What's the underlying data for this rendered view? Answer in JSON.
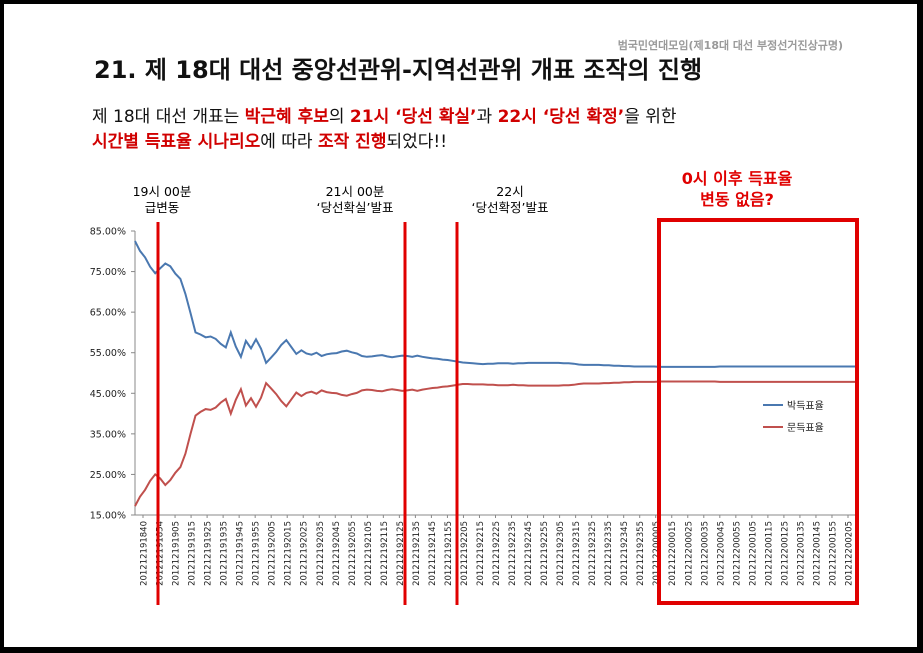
{
  "organization": "범국민연대모임(제18대 대선 부정선거진상규명)",
  "title": "21. 제 18대 대선 중앙선관위-지역선관위 개표 조작의 진행",
  "description": {
    "line1": [
      {
        "text": "제 18대 대선 개표는 ",
        "hl": false
      },
      {
        "text": "박근혜 후보",
        "hl": true
      },
      {
        "text": "의 ",
        "hl": false
      },
      {
        "text": "21시 ‘당선 확실’",
        "hl": true
      },
      {
        "text": "과 ",
        "hl": false
      },
      {
        "text": "22시 ‘당선 확정’",
        "hl": true
      },
      {
        "text": "을 위한",
        "hl": false
      }
    ],
    "line2": [
      {
        "text": "시간별 득표율 시나리오",
        "hl": true
      },
      {
        "text": "에 따라 ",
        "hl": false
      },
      {
        "text": "조작 진행",
        "hl": true
      },
      {
        "text": "되었다!!",
        "hl": false
      }
    ]
  },
  "annotations": {
    "a1_line1": "19시 00분",
    "a1_line2": "급변동",
    "a2_line1": "21시 00분",
    "a2_line2": "‘당선확실’발표",
    "a3_line1": "22시",
    "a3_line2": "‘당선확정’발표",
    "a4_line1": "0시 이후 득표율",
    "a4_line2": "변동 없음?"
  },
  "colors": {
    "park": "#4a78b0",
    "moon": "#c0504d",
    "highlight": "#e00000"
  },
  "chart_data": {
    "type": "line",
    "ylim": [
      15,
      85
    ],
    "yticks": [
      "15.00%",
      "25.00%",
      "35.00%",
      "45.00%",
      "55.00%",
      "65.00%",
      "75.00%",
      "85.00%"
    ],
    "ytick_values": [
      15,
      25,
      35,
      45,
      55,
      65,
      75,
      85
    ],
    "x_tick_labels": [
      "201212191840",
      "201212191854",
      "201212191905",
      "201212191915",
      "201212191925",
      "201212191935",
      "201212191945",
      "201212191955",
      "201212192005",
      "201212192015",
      "201212192025",
      "201212192035",
      "201212192045",
      "201212192055",
      "201212192105",
      "201212192115",
      "201212192125",
      "201212192135",
      "201212192145",
      "201212192155",
      "201212192205",
      "201212192215",
      "201212192225",
      "201212192235",
      "201212192245",
      "201212192255",
      "201212192305",
      "201212192315",
      "201212192325",
      "201212192335",
      "201212192345",
      "201212192355",
      "201212200005",
      "201212200015",
      "201212200025",
      "201212200035",
      "201212200045",
      "201212200055",
      "201212200105",
      "201212200115",
      "201212200125",
      "201212200135",
      "201212200145",
      "201212200155",
      "201212200205"
    ],
    "series": [
      {
        "name": "박득표율",
        "color": "#4a78b0",
        "values": [
          82.5,
          80.1,
          78.5,
          76.2,
          74.6,
          75.8,
          77.0,
          76.3,
          74.5,
          73.2,
          69.5,
          64.8,
          60.0,
          59.5,
          58.8,
          59.0,
          58.4,
          57.2,
          56.3,
          60.0,
          56.5,
          54.0,
          57.9,
          56.1,
          58.3,
          56.0,
          52.5,
          53.8,
          55.2,
          56.9,
          58.1,
          56.4,
          54.7,
          55.6,
          54.8,
          54.5,
          55.0,
          54.2,
          54.6,
          54.8,
          54.9,
          55.3,
          55.5,
          55.1,
          54.8,
          54.2,
          54.0,
          54.1,
          54.3,
          54.4,
          54.1,
          53.9,
          54.1,
          54.3,
          54.2,
          54.0,
          54.3,
          54.0,
          53.8,
          53.6,
          53.5,
          53.3,
          53.2,
          53.0,
          52.8,
          52.6,
          52.5,
          52.4,
          52.3,
          52.2,
          52.3,
          52.3,
          52.4,
          52.4,
          52.4,
          52.3,
          52.4,
          52.4,
          52.5,
          52.5,
          52.5,
          52.5,
          52.5,
          52.5,
          52.5,
          52.4,
          52.4,
          52.3,
          52.1,
          52.0,
          52.0,
          52.0,
          52.0,
          51.9,
          51.9,
          51.8,
          51.8,
          51.7,
          51.7,
          51.6,
          51.6,
          51.6,
          51.6,
          51.6,
          51.5,
          51.5,
          51.5,
          51.5,
          51.5,
          51.5,
          51.5,
          51.5,
          51.5,
          51.5,
          51.5,
          51.5,
          51.6,
          51.6,
          51.6,
          51.6,
          51.6,
          51.6,
          51.6,
          51.6,
          51.6,
          51.6,
          51.6,
          51.6,
          51.6,
          51.6,
          51.6,
          51.6,
          51.6,
          51.6,
          51.6,
          51.6,
          51.6,
          51.6,
          51.6,
          51.6,
          51.6,
          51.6,
          51.6,
          51.6
        ]
      },
      {
        "name": "문득표율",
        "color": "#c0504d",
        "values": [
          17.2,
          19.5,
          21.2,
          23.4,
          25.0,
          24.0,
          22.4,
          23.6,
          25.4,
          26.8,
          30.1,
          35.0,
          39.5,
          40.4,
          41.1,
          40.9,
          41.5,
          42.7,
          43.6,
          40.0,
          43.4,
          46.0,
          42.0,
          43.8,
          41.7,
          43.9,
          47.5,
          46.2,
          44.8,
          43.1,
          41.8,
          43.5,
          45.2,
          44.3,
          45.1,
          45.4,
          44.9,
          45.7,
          45.3,
          45.1,
          45.0,
          44.6,
          44.4,
          44.8,
          45.1,
          45.7,
          45.9,
          45.8,
          45.6,
          45.5,
          45.8,
          46.0,
          45.8,
          45.6,
          45.7,
          45.9,
          45.6,
          45.9,
          46.1,
          46.3,
          46.4,
          46.6,
          46.7,
          46.9,
          47.1,
          47.3,
          47.3,
          47.2,
          47.2,
          47.2,
          47.1,
          47.1,
          47.0,
          47.0,
          47.0,
          47.1,
          47.0,
          47.0,
          46.9,
          46.9,
          46.9,
          46.9,
          46.9,
          46.9,
          46.9,
          47.0,
          47.0,
          47.1,
          47.3,
          47.4,
          47.4,
          47.4,
          47.4,
          47.5,
          47.5,
          47.6,
          47.6,
          47.7,
          47.7,
          47.8,
          47.8,
          47.8,
          47.8,
          47.8,
          47.9,
          47.9,
          47.9,
          47.9,
          47.9,
          47.9,
          47.9,
          47.9,
          47.9,
          47.9,
          47.9,
          47.9,
          47.8,
          47.8,
          47.8,
          47.8,
          47.8,
          47.8,
          47.8,
          47.8,
          47.8,
          47.8,
          47.8,
          47.8,
          47.8,
          47.8,
          47.8,
          47.8,
          47.8,
          47.8,
          47.8,
          47.8,
          47.8,
          47.8,
          47.8,
          47.8,
          47.8,
          47.8,
          47.8,
          47.8
        ]
      }
    ],
    "legend": "right",
    "grid": false
  }
}
